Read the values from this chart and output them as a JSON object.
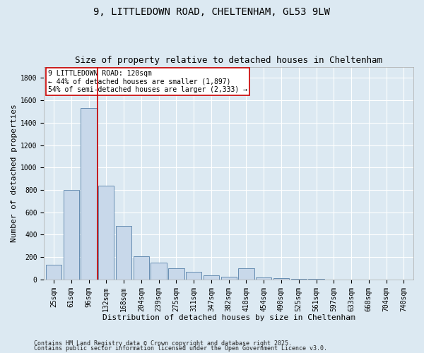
{
  "title": "9, LITTLEDOWN ROAD, CHELTENHAM, GL53 9LW",
  "subtitle": "Size of property relative to detached houses in Cheltenham",
  "xlabel": "Distribution of detached houses by size in Cheltenham",
  "ylabel": "Number of detached properties",
  "categories": [
    "25sqm",
    "61sqm",
    "96sqm",
    "132sqm",
    "168sqm",
    "204sqm",
    "239sqm",
    "275sqm",
    "311sqm",
    "347sqm",
    "382sqm",
    "418sqm",
    "454sqm",
    "490sqm",
    "525sqm",
    "561sqm",
    "597sqm",
    "633sqm",
    "668sqm",
    "704sqm",
    "740sqm"
  ],
  "values": [
    130,
    800,
    1530,
    840,
    480,
    210,
    150,
    100,
    70,
    40,
    25,
    100,
    15,
    10,
    5,
    3,
    2,
    2,
    2,
    2,
    2
  ],
  "bar_color": "#c8d8ea",
  "bar_edge_color": "#5580a8",
  "vline_pos": 2.5,
  "vline_color": "#cc0000",
  "annotation_title": "9 LITTLEDOWN ROAD: 120sqm",
  "annotation_line1": "← 44% of detached houses are smaller (1,897)",
  "annotation_line2": "54% of semi-detached houses are larger (2,333) →",
  "annotation_box_color": "#ffffff",
  "annotation_box_edge": "#cc0000",
  "ylim": [
    0,
    1900
  ],
  "yticks": [
    0,
    200,
    400,
    600,
    800,
    1000,
    1200,
    1400,
    1600,
    1800
  ],
  "footer1": "Contains HM Land Registry data © Crown copyright and database right 2025.",
  "footer2": "Contains public sector information licensed under the Open Government Licence v3.0.",
  "bg_color": "#dce9f2",
  "plot_bg_color": "#dce9f2",
  "grid_color": "#ffffff",
  "title_fontsize": 10,
  "subtitle_fontsize": 9,
  "axis_label_fontsize": 8,
  "tick_fontsize": 7,
  "annotation_fontsize": 7,
  "footer_fontsize": 6
}
